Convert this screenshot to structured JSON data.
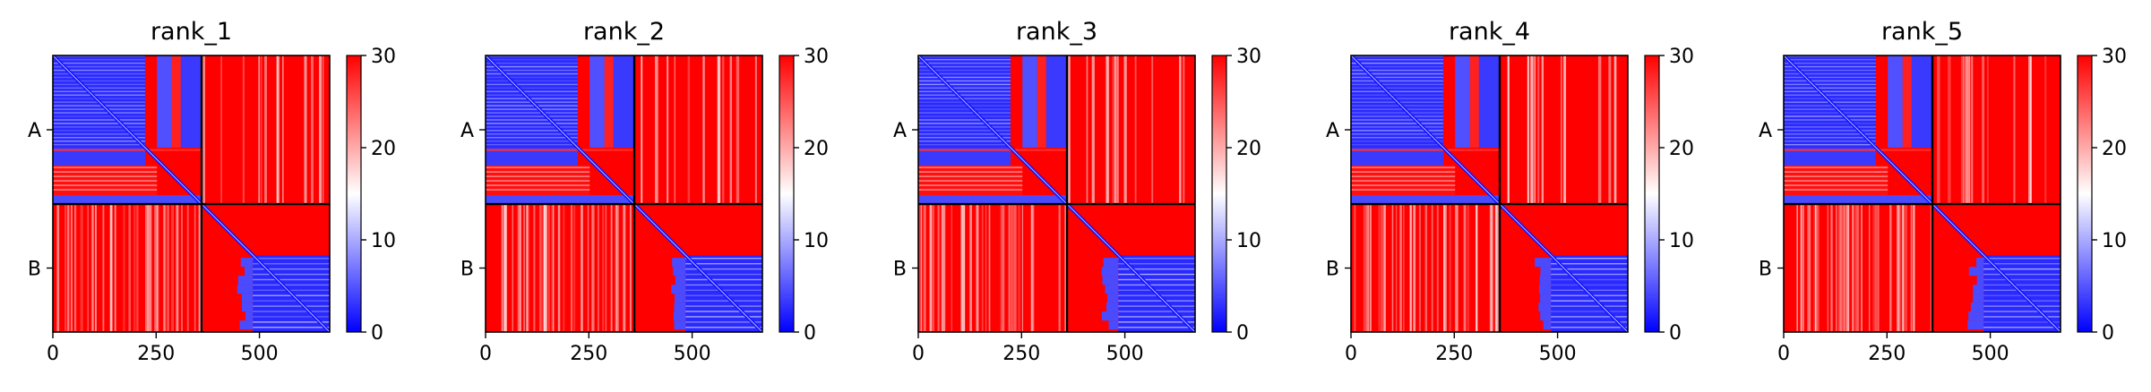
{
  "chart_data": {
    "type": "heatmap",
    "description_values": "Predicted aligned error (PAE) matrices for two chains, A and B, five model ranks",
    "chain_labels": [
      "A",
      "B"
    ],
    "chain_boundary": 360,
    "matrix_size": 670,
    "x_ticks": [
      0,
      250,
      500
    ],
    "color_scale": {
      "min": 0,
      "max": 30,
      "ticks": [
        0,
        10,
        20,
        30
      ],
      "colors": [
        "#0000ff",
        "#ffffff",
        "#ff0000"
      ]
    },
    "panels": [
      {
        "title": "rank_1"
      },
      {
        "title": "rank_2"
      },
      {
        "title": "rank_3"
      },
      {
        "title": "rank_4"
      },
      {
        "title": "rank_5"
      }
    ]
  }
}
